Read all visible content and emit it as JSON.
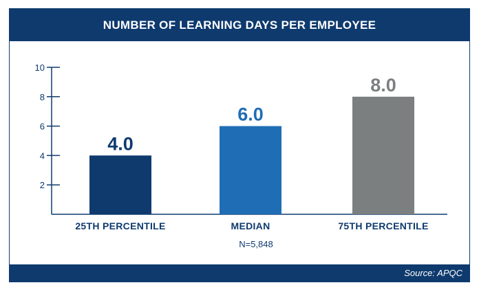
{
  "chart_data": {
    "type": "bar",
    "title": "NUMBER OF LEARNING DAYS PER EMPLOYEE",
    "categories": [
      "25TH PERCENTILE",
      "MEDIAN",
      "75TH PERCENTILE"
    ],
    "values": [
      4.0,
      6.0,
      8.0
    ],
    "value_labels": [
      "4.0",
      "6.0",
      "8.0"
    ],
    "bar_colors": [
      "#0e3a6e",
      "#1f6db5",
      "#7b7f80"
    ],
    "yticks": [
      2,
      4,
      6,
      8,
      10
    ],
    "ylim": [
      0,
      10
    ],
    "grid": false,
    "note": "N=5,848",
    "source": "Source: APQC"
  },
  "colors": {
    "navy": "#0e3a6e",
    "blue": "#1f6db5",
    "gray": "#7b7f80"
  }
}
